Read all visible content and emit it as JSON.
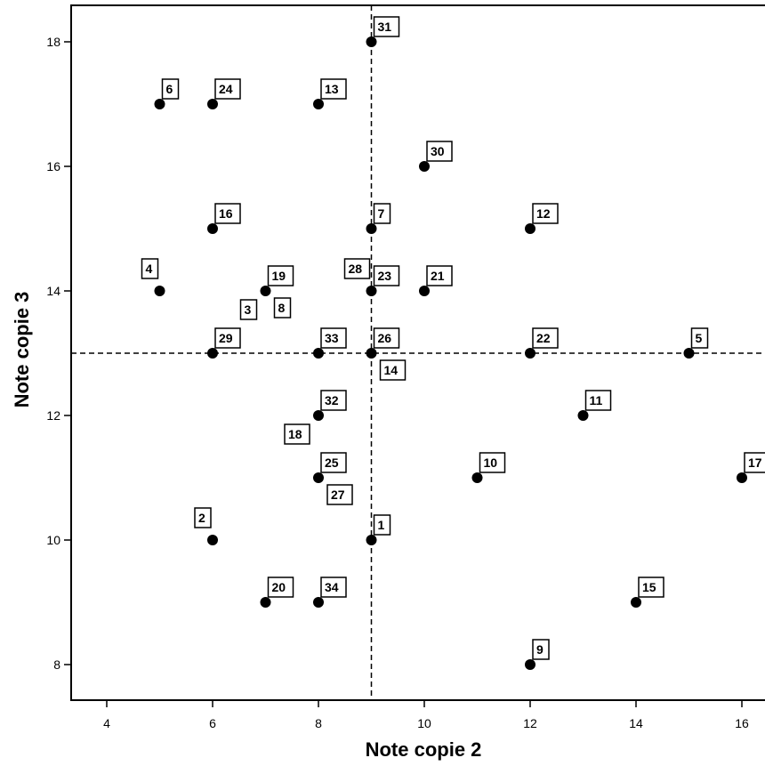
{
  "chart_data": {
    "type": "scatter",
    "title": "",
    "xlabel": "Note copie 2",
    "ylabel": "Note copie 3",
    "xlim": [
      3.4,
      16.5
    ],
    "ylim": [
      7.55,
      18.6
    ],
    "xticks": [
      4,
      6,
      8,
      10,
      12,
      14,
      16
    ],
    "yticks": [
      8,
      10,
      12,
      14,
      16,
      18
    ],
    "grid": false,
    "reference_lines": {
      "x": 9,
      "y": 13,
      "style": "dashed"
    },
    "points": [
      {
        "label": "1",
        "x": 9,
        "y": 10,
        "label_dir": "ne"
      },
      {
        "label": "2",
        "x": 6,
        "y": 10,
        "label_dir": "nw"
      },
      {
        "label": "3",
        "x": 7,
        "y": 14,
        "label_dir": "sw"
      },
      {
        "label": "4",
        "x": 5,
        "y": 14,
        "label_dir": "nw"
      },
      {
        "label": "5",
        "x": 15,
        "y": 13,
        "label_dir": "ne"
      },
      {
        "label": "6",
        "x": 5,
        "y": 17,
        "label_dir": "ne"
      },
      {
        "label": "7",
        "x": 9,
        "y": 15,
        "label_dir": "ne"
      },
      {
        "label": "8",
        "x": 7,
        "y": 14,
        "label_dir": "se"
      },
      {
        "label": "9",
        "x": 12,
        "y": 8,
        "label_dir": "ne"
      },
      {
        "label": "10",
        "x": 11,
        "y": 11,
        "label_dir": "ne"
      },
      {
        "label": "11",
        "x": 13,
        "y": 12,
        "label_dir": "ne"
      },
      {
        "label": "12",
        "x": 12,
        "y": 15,
        "label_dir": "ne"
      },
      {
        "label": "13",
        "x": 8,
        "y": 17,
        "label_dir": "ne"
      },
      {
        "label": "14",
        "x": 9,
        "y": 13,
        "label_dir": "se"
      },
      {
        "label": "15",
        "x": 14,
        "y": 9,
        "label_dir": "ne"
      },
      {
        "label": "16",
        "x": 6,
        "y": 15,
        "label_dir": "ne"
      },
      {
        "label": "17",
        "x": 16,
        "y": 11,
        "label_dir": "ne"
      },
      {
        "label": "18",
        "x": 8,
        "y": 12,
        "label_dir": "sw"
      },
      {
        "label": "19",
        "x": 7,
        "y": 14,
        "label_dir": "ne"
      },
      {
        "label": "20",
        "x": 7,
        "y": 9,
        "label_dir": "ne"
      },
      {
        "label": "21",
        "x": 10,
        "y": 14,
        "label_dir": "ne"
      },
      {
        "label": "22",
        "x": 12,
        "y": 13,
        "label_dir": "ne"
      },
      {
        "label": "23",
        "x": 9,
        "y": 14,
        "label_dir": "ne"
      },
      {
        "label": "24",
        "x": 6,
        "y": 17,
        "label_dir": "ne"
      },
      {
        "label": "25",
        "x": 8,
        "y": 11,
        "label_dir": "ne"
      },
      {
        "label": "26",
        "x": 9,
        "y": 13,
        "label_dir": "ne"
      },
      {
        "label": "27",
        "x": 8,
        "y": 11,
        "label_dir": "se"
      },
      {
        "label": "28",
        "x": 9,
        "y": 14,
        "label_dir": "nw"
      },
      {
        "label": "29",
        "x": 6,
        "y": 13,
        "label_dir": "ne"
      },
      {
        "label": "30",
        "x": 10,
        "y": 16,
        "label_dir": "ne"
      },
      {
        "label": "31",
        "x": 9,
        "y": 18,
        "label_dir": "ne"
      },
      {
        "label": "32",
        "x": 8,
        "y": 12,
        "label_dir": "ne"
      },
      {
        "label": "33",
        "x": 8,
        "y": 13,
        "label_dir": "ne"
      },
      {
        "label": "34",
        "x": 8,
        "y": 9,
        "label_dir": "ne"
      }
    ]
  }
}
